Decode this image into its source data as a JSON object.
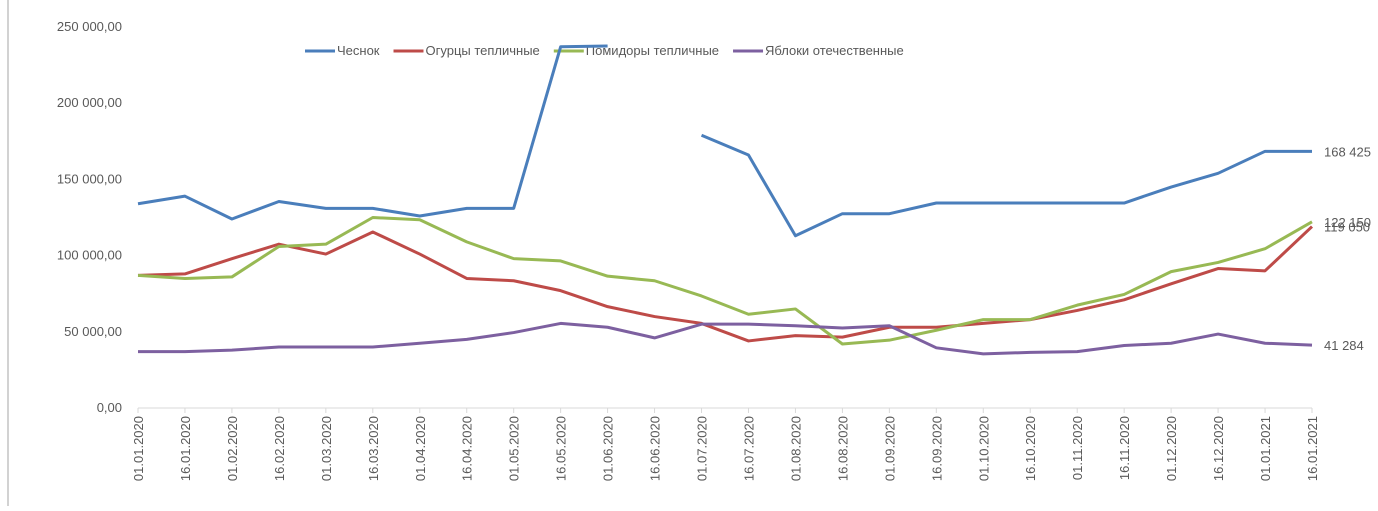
{
  "chart_data": {
    "type": "line",
    "categories": [
      "01.01.2020",
      "16.01.2020",
      "01.02.2020",
      "16.02.2020",
      "01.03.2020",
      "16.03.2020",
      "01.04.2020",
      "16.04.2020",
      "01.05.2020",
      "16.05.2020",
      "01.06.2020",
      "16.06.2020",
      "01.07.2020",
      "16.07.2020",
      "01.08.2020",
      "16.08.2020",
      "01.09.2020",
      "16.09.2020",
      "01.10.2020",
      "16.10.2020",
      "01.11.2020",
      "16.11.2020",
      "01.12.2020",
      "16.12.2020",
      "01.01.2021",
      "16.01.2021"
    ],
    "ylim": [
      0,
      250000
    ],
    "yticks": [
      {
        "value": 0,
        "label": "0,00"
      },
      {
        "value": 50000,
        "label": "50 000,00"
      },
      {
        "value": 100000,
        "label": "100 000,00"
      },
      {
        "value": 150000,
        "label": "150 000,00"
      },
      {
        "value": 200000,
        "label": "200 000,00"
      },
      {
        "value": 250000,
        "label": "250 000,00"
      }
    ],
    "grid": false,
    "legend": "top",
    "series": [
      {
        "name": "Чеснок",
        "color": "#4a7ebb",
        "values": [
          134000,
          139000,
          124000,
          135500,
          131000,
          131000,
          126000,
          131000,
          131000,
          237000,
          237500,
          null,
          179000,
          166000,
          113000,
          127500,
          127500,
          134500,
          134500,
          134500,
          134500,
          134500,
          145000,
          154000,
          168425,
          168425
        ],
        "value_labels": [
          null,
          null,
          null,
          null,
          null,
          null,
          null,
          null,
          null,
          null,
          null,
          null,
          null,
          null,
          null,
          null,
          null,
          null,
          null,
          null,
          null,
          null,
          null,
          null,
          null,
          "168 425"
        ]
      },
      {
        "name": "Огурцы тепличные",
        "color": "#be4b48",
        "values": [
          87000,
          88000,
          98000,
          107500,
          101000,
          115500,
          101000,
          85000,
          83500,
          77000,
          66500,
          60000,
          55500,
          44000,
          47500,
          46500,
          53000,
          53000,
          55500,
          58000,
          64000,
          71000,
          81500,
          91500,
          90000,
          119050
        ],
        "value_labels": [
          null,
          null,
          null,
          null,
          null,
          null,
          null,
          null,
          null,
          null,
          null,
          null,
          null,
          null,
          null,
          null,
          null,
          null,
          null,
          null,
          null,
          null,
          null,
          null,
          null,
          "119 050"
        ]
      },
      {
        "name": "Помидоры тепличные",
        "color": "#98b954",
        "values": [
          87000,
          85000,
          86000,
          106000,
          107500,
          125000,
          123500,
          109000,
          98000,
          96500,
          86500,
          83500,
          73500,
          61500,
          65000,
          42000,
          44500,
          51000,
          58000,
          58000,
          67500,
          74500,
          89500,
          95500,
          104500,
          122150
        ],
        "value_labels": [
          null,
          null,
          null,
          null,
          null,
          null,
          null,
          null,
          null,
          null,
          null,
          null,
          null,
          null,
          null,
          null,
          null,
          null,
          null,
          null,
          null,
          null,
          null,
          null,
          null,
          "122 150"
        ]
      },
      {
        "name": "Яблоки отечественные",
        "color": "#7d60a0",
        "values": [
          37000,
          37000,
          38000,
          40000,
          40000,
          40000,
          42500,
          45000,
          49500,
          55500,
          53000,
          46000,
          55000,
          55000,
          54000,
          52500,
          54000,
          39500,
          35500,
          36500,
          37000,
          41000,
          42500,
          48500,
          42500,
          41284
        ],
        "value_labels": [
          null,
          null,
          null,
          null,
          null,
          null,
          null,
          null,
          null,
          null,
          null,
          null,
          null,
          null,
          null,
          null,
          null,
          null,
          null,
          null,
          null,
          null,
          null,
          null,
          null,
          "41 284"
        ]
      }
    ]
  }
}
